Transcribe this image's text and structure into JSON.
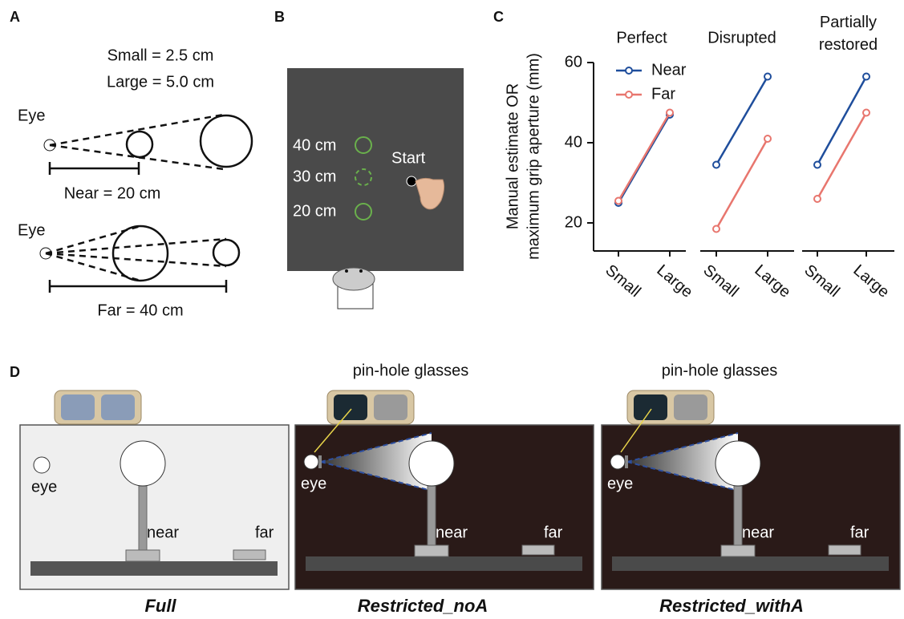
{
  "panel_a": {
    "label": "A",
    "small": "Small = 2.5 cm",
    "large": "Large = 5.0 cm",
    "eye_near": "Eye",
    "near": "Near = 20 cm",
    "eye_far": "Eye",
    "far": "Far = 40 cm"
  },
  "panel_b": {
    "label": "B",
    "distances": [
      "40 cm",
      "30 cm",
      "20 cm"
    ],
    "start": "Start"
  },
  "panel_c": {
    "label": "C",
    "ylabel": [
      "Manual estimate OR",
      "maximum grip aperture (mm)"
    ]
  },
  "chart_data": [
    {
      "type": "line",
      "title": "Perfect",
      "categories": [
        "Small",
        "Large"
      ],
      "ylim": [
        13,
        60
      ],
      "yticks": [
        20,
        40,
        60
      ],
      "legend": "upper left",
      "series": [
        {
          "name": "Near",
          "color": "#1f4e9c",
          "values": [
            25,
            47
          ]
        },
        {
          "name": "Far",
          "color": "#e8766e",
          "values": [
            25.5,
            47.5
          ]
        }
      ]
    },
    {
      "type": "line",
      "title": "Disrupted",
      "categories": [
        "Small",
        "Large"
      ],
      "ylim": [
        13,
        60
      ],
      "series": [
        {
          "color": "#1f4e9c",
          "values": [
            34.5,
            56.5
          ]
        },
        {
          "color": "#e8766e",
          "values": [
            18.5,
            41
          ]
        }
      ]
    },
    {
      "type": "line",
      "title": "Partially restored",
      "categories": [
        "Small",
        "Large"
      ],
      "ylim": [
        13,
        60
      ],
      "series": [
        {
          "color": "#1f4e9c",
          "values": [
            34.5,
            56.5
          ]
        },
        {
          "color": "#e8766e",
          "values": [
            26,
            47.5
          ]
        }
      ]
    }
  ],
  "panel_d": {
    "label": "D",
    "conditions": [
      {
        "name": "Full",
        "eye": "eye",
        "near": "near",
        "far": "far"
      },
      {
        "name": "Restricted_noA",
        "glasses": "pin-hole glasses",
        "eye": "eye",
        "near": "near",
        "far": "far"
      },
      {
        "name": "Restricted_withA",
        "glasses": "pin-hole glasses",
        "eye": "eye",
        "near": "near",
        "far": "far"
      }
    ]
  }
}
